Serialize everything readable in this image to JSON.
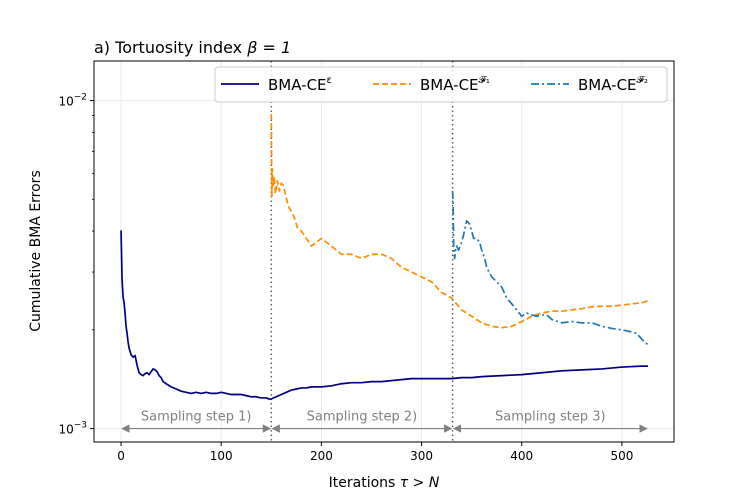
{
  "chart_data": {
    "type": "line",
    "title": "a) Tortuosity index ",
    "title_math": "β = 1",
    "xlabel": "Iterations ",
    "xlabel_math": "τ > N",
    "ylabel": "Cumulative BMA Errors",
    "xlim": [
      -27,
      552
    ],
    "ylim": [
      0.00091,
      0.0132
    ],
    "yscale": "log",
    "xticks": [
      0,
      100,
      200,
      300,
      400,
      500
    ],
    "xtick_labels": [
      "0",
      "100",
      "200",
      "300",
      "400",
      "500"
    ],
    "yticks": [
      0.001,
      0.01
    ],
    "ytick_labels": [
      {
        "base": "10",
        "exp": "−3"
      },
      {
        "base": "10",
        "exp": "−2"
      }
    ],
    "grid": true,
    "legend_position": "top-right",
    "vlines": [
      150,
      331
    ],
    "annotations": [
      {
        "text": "Sampling step 1)",
        "x_start": 0,
        "x_end": 150,
        "y": 0.001
      },
      {
        "text": "Sampling step 2)",
        "x_start": 150,
        "x_end": 331,
        "y": 0.001
      },
      {
        "text": "Sampling step 3)",
        "x_start": 331,
        "x_end": 526,
        "y": 0.001
      }
    ],
    "series": [
      {
        "name": "BMA-CE",
        "name_sup": "ε",
        "color": "#00007f",
        "style": "solid",
        "x": [
          0,
          1,
          2,
          3,
          4,
          5,
          6,
          7,
          8,
          10,
          12,
          14,
          16,
          17,
          18,
          20,
          22,
          24,
          26,
          28,
          30,
          32,
          34,
          36,
          38,
          40,
          42,
          45,
          50,
          55,
          60,
          65,
          70,
          75,
          80,
          85,
          90,
          95,
          100,
          105,
          110,
          115,
          120,
          125,
          130,
          135,
          140,
          145,
          148,
          150,
          152,
          155,
          160,
          165,
          170,
          175,
          180,
          185,
          190,
          200,
          210,
          220,
          230,
          240,
          250,
          260,
          270,
          280,
          290,
          300,
          310,
          320,
          330,
          340,
          350,
          360,
          380,
          400,
          420,
          440,
          460,
          480,
          500,
          520,
          526
        ],
        "y": [
          0.00402,
          0.00285,
          0.00252,
          0.00242,
          0.00225,
          0.00205,
          0.00195,
          0.00184,
          0.00176,
          0.00168,
          0.00165,
          0.00167,
          0.00156,
          0.00152,
          0.00148,
          0.00146,
          0.00145,
          0.00147,
          0.00148,
          0.00146,
          0.00149,
          0.00152,
          0.00151,
          0.00149,
          0.00145,
          0.00143,
          0.00139,
          0.00137,
          0.00134,
          0.00132,
          0.0013,
          0.00129,
          0.00128,
          0.00129,
          0.00128,
          0.00129,
          0.00128,
          0.00128,
          0.00129,
          0.00128,
          0.00127,
          0.00127,
          0.00127,
          0.00126,
          0.00125,
          0.00125,
          0.00124,
          0.00124,
          0.00123,
          0.00123,
          0.00124,
          0.00125,
          0.00127,
          0.00129,
          0.00131,
          0.00132,
          0.00133,
          0.00133,
          0.00134,
          0.00134,
          0.00135,
          0.00137,
          0.00138,
          0.00138,
          0.00139,
          0.00139,
          0.0014,
          0.00141,
          0.00142,
          0.00142,
          0.00142,
          0.00142,
          0.00142,
          0.00143,
          0.00143,
          0.00144,
          0.00145,
          0.00146,
          0.00148,
          0.0015,
          0.00151,
          0.00152,
          0.00154,
          0.00155,
          0.00155
        ]
      },
      {
        "name": "BMA-CE",
        "name_sup": "𝓕₁",
        "color": "#ff8c00",
        "style": "dashed",
        "x": [
          150,
          150.5,
          151,
          152,
          153,
          154,
          155,
          156,
          158,
          160,
          162,
          164,
          166,
          168,
          170,
          173,
          176,
          180,
          185,
          190,
          195,
          200,
          210,
          220,
          230,
          240,
          250,
          260,
          270,
          280,
          290,
          300,
          310,
          320,
          330,
          340,
          350,
          360,
          370,
          380,
          390,
          400,
          410,
          420,
          430,
          440,
          450,
          460,
          470,
          480,
          490,
          500,
          510,
          520,
          526
        ],
        "y": [
          0.0091,
          0.0051,
          0.0062,
          0.0055,
          0.0058,
          0.0052,
          0.0054,
          0.0057,
          0.0053,
          0.0056,
          0.0055,
          0.0052,
          0.0049,
          0.0047,
          0.0046,
          0.0044,
          0.0041,
          0.004,
          0.0038,
          0.0036,
          0.0037,
          0.0038,
          0.0036,
          0.0034,
          0.0034,
          0.0033,
          0.0034,
          0.0034,
          0.0033,
          0.0031,
          0.003,
          0.0029,
          0.0028,
          0.0026,
          0.0025,
          0.0023,
          0.0022,
          0.0021,
          0.00205,
          0.00203,
          0.00205,
          0.00212,
          0.0022,
          0.00225,
          0.00228,
          0.00228,
          0.0023,
          0.00232,
          0.00235,
          0.00236,
          0.00236,
          0.00238,
          0.0024,
          0.00242,
          0.00245
        ]
      },
      {
        "name": "BMA-CE",
        "name_sup": "𝓕₂",
        "color": "#1f77b4",
        "style": "dashdot",
        "x": [
          331,
          331.5,
          332,
          333,
          334,
          335,
          337,
          340,
          342,
          345,
          348,
          350,
          352,
          355,
          358,
          360,
          363,
          365,
          370,
          375,
          380,
          385,
          390,
          395,
          400,
          405,
          410,
          415,
          420,
          425,
          430,
          440,
          450,
          460,
          470,
          480,
          490,
          500,
          510,
          515,
          520,
          526
        ],
        "y": [
          0.0053,
          0.0048,
          0.0036,
          0.0033,
          0.0035,
          0.0036,
          0.0035,
          0.0037,
          0.0039,
          0.0043,
          0.0042,
          0.004,
          0.0038,
          0.0038,
          0.0037,
          0.0035,
          0.0033,
          0.0031,
          0.0029,
          0.0028,
          0.0027,
          0.0025,
          0.0024,
          0.0023,
          0.0022,
          0.00225,
          0.00222,
          0.0022,
          0.00222,
          0.00222,
          0.00215,
          0.0021,
          0.00212,
          0.0021,
          0.0021,
          0.00205,
          0.00202,
          0.002,
          0.00197,
          0.00195,
          0.00187,
          0.0018
        ]
      }
    ]
  }
}
